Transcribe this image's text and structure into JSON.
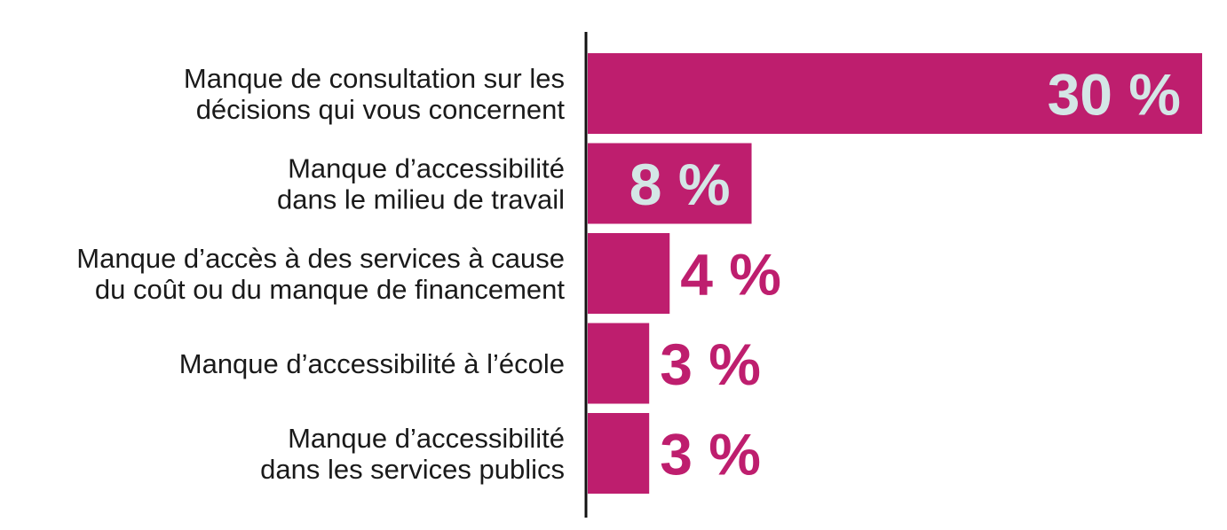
{
  "chart_data": {
    "type": "bar",
    "orientation": "horizontal",
    "categories": [
      [
        "Manque de consultation sur les",
        "décisions qui vous concernent"
      ],
      [
        "Manque d’accessibilité",
        "dans le milieu de travail"
      ],
      [
        "Manque d’accès à des services à cause",
        "du coût ou du manque de financement"
      ],
      [
        "Manque d’accessibilité à l’école"
      ],
      [
        "Manque d’accessibilité",
        "dans les services publics"
      ]
    ],
    "values": [
      30,
      8,
      4,
      3,
      3
    ],
    "value_labels": [
      "30 %",
      "8 %",
      "4 %",
      "3 %",
      "3 %"
    ],
    "unit": "%",
    "xlim": [
      0,
      30
    ],
    "grid": false,
    "legend": "none",
    "colors": {
      "bar": "#be1e6e",
      "label_inside": "#d4e6e6",
      "label_outside": "#be1e6e",
      "axis": "#111111",
      "text": "#1a1a1a"
    }
  }
}
